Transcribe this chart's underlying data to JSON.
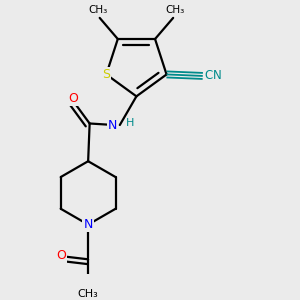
{
  "background_color": "#ebebeb",
  "atom_colors": {
    "S": "#cccc00",
    "N": "#0000ff",
    "O": "#ff0000",
    "C": "#000000",
    "CN": "#008b8b"
  },
  "bond_color": "#000000",
  "bond_width": 1.6,
  "figsize": [
    3.0,
    3.0
  ],
  "dpi": 100,
  "xlim": [
    0.1,
    0.9
  ],
  "ylim": [
    0.05,
    0.95
  ]
}
